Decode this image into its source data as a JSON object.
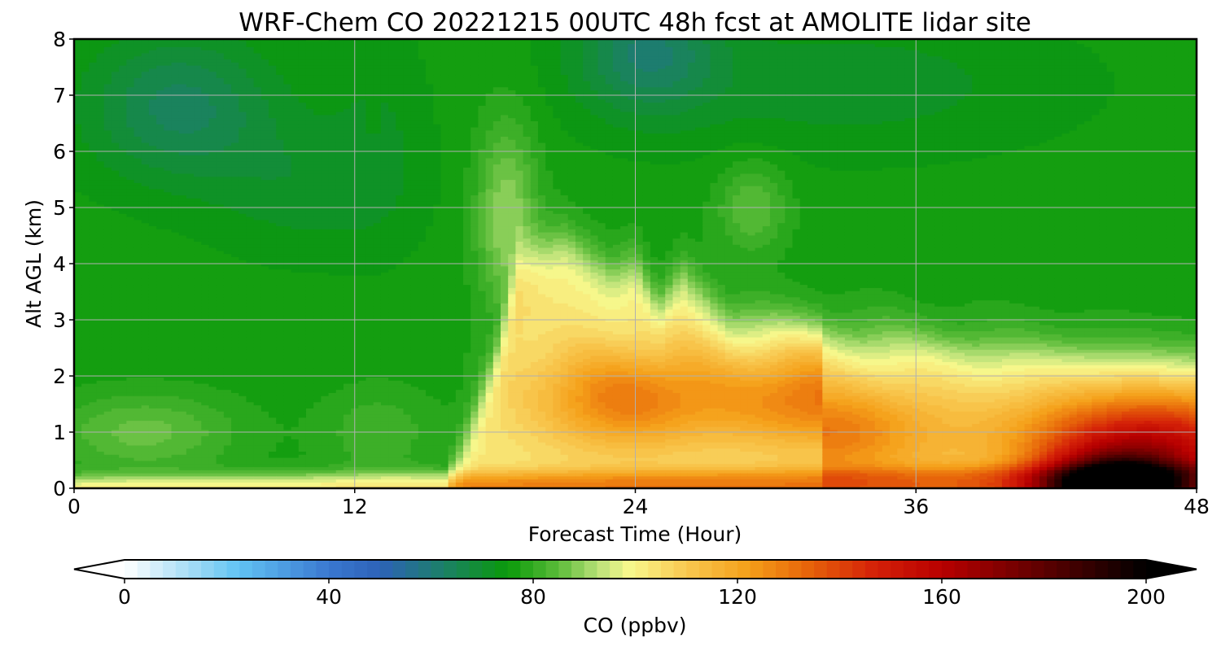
{
  "chart_data": {
    "type": "heatmap",
    "subtype": "filled-contour time-height cross section",
    "title": "WRF-Chem CO  20221215 00UTC 48h fcst at AMOLITE lidar site",
    "xlabel": "Forecast Time (Hour)",
    "ylabel": "Alt AGL (km)",
    "xlim": [
      0,
      48
    ],
    "ylim": [
      0,
      8
    ],
    "xticks": [
      0,
      12,
      24,
      36,
      48
    ],
    "yticks": [
      0,
      1,
      2,
      3,
      4,
      5,
      6,
      7,
      8
    ],
    "grid": true,
    "x": [
      0,
      4,
      8,
      12,
      14,
      16,
      17,
      18,
      19,
      20,
      21,
      22,
      23,
      24,
      25,
      26,
      27,
      28,
      30,
      32,
      34,
      36,
      38,
      40,
      42,
      44,
      46,
      48
    ],
    "y": [
      0,
      0.25,
      0.5,
      0.75,
      1,
      1.25,
      1.5,
      1.75,
      2,
      2.25,
      2.5,
      2.75,
      3,
      3.25,
      3.5,
      3.75,
      4,
      4.25,
      4.5,
      4.75,
      5,
      5.25,
      5.5,
      5.75,
      6,
      6.25,
      6.5,
      6.75,
      7,
      7.25,
      7.5,
      7.75,
      8
    ],
    "colorbar": {
      "label": "CO  (ppbv)",
      "vmin": 0,
      "vmax": 200,
      "ticks": [
        0,
        40,
        80,
        120,
        160,
        200
      ],
      "extend": "both",
      "colors": [
        {
          "value": 0,
          "color": "#ffffff"
        },
        {
          "value": 16,
          "color": "#8fd4f4"
        },
        {
          "value": 22,
          "color": "#62c4f4"
        },
        {
          "value": 40,
          "color": "#3a78d0"
        },
        {
          "value": 50,
          "color": "#2d62b8"
        },
        {
          "value": 62,
          "color": "#1c7f6a"
        },
        {
          "value": 75,
          "color": "#0a9a0a"
        },
        {
          "value": 85,
          "color": "#5cbc3a"
        },
        {
          "value": 93,
          "color": "#bce27a"
        },
        {
          "value": 99,
          "color": "#f8f88c"
        },
        {
          "value": 110,
          "color": "#f8c850"
        },
        {
          "value": 122,
          "color": "#f5a01a"
        },
        {
          "value": 133,
          "color": "#e8680a"
        },
        {
          "value": 147,
          "color": "#d42008"
        },
        {
          "value": 160,
          "color": "#b80000"
        },
        {
          "value": 180,
          "color": "#5c0000"
        },
        {
          "value": 200,
          "color": "#000000"
        }
      ]
    },
    "description_levels_ppbv": "Surface layer high (100-200, black >=200 near 44-46h), mid-level green 72-80, upper-left blue-green 60-65"
  }
}
